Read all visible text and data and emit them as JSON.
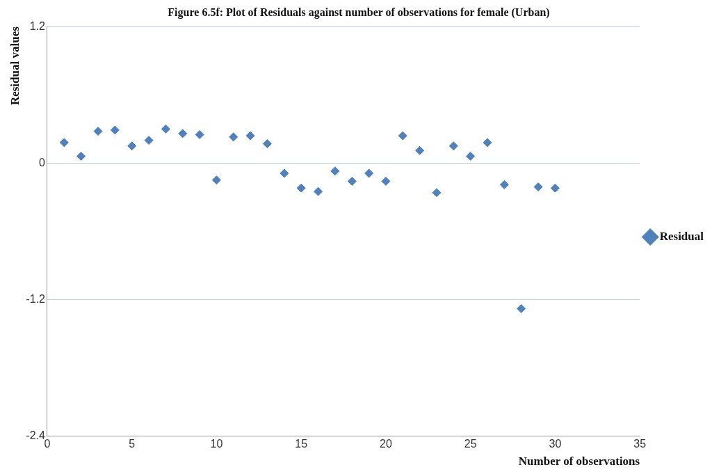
{
  "chart_data": {
    "type": "scatter",
    "title": "Figure 6.5f: Plot of Residuals against number of observations for female (Urban)",
    "xlabel": "Number of observations",
    "ylabel": "Residual values",
    "x": [
      1,
      2,
      3,
      4,
      5,
      6,
      7,
      8,
      9,
      10,
      11,
      12,
      13,
      14,
      15,
      16,
      17,
      18,
      19,
      20,
      21,
      22,
      23,
      24,
      25,
      26,
      27,
      28,
      29,
      30
    ],
    "series": [
      {
        "name": "Residual",
        "color": "#4f81bd",
        "values": [
          0.18,
          0.06,
          0.28,
          0.29,
          0.15,
          0.2,
          0.3,
          0.26,
          0.25,
          -0.15,
          0.23,
          0.24,
          0.17,
          -0.09,
          -0.22,
          -0.25,
          -0.07,
          -0.16,
          -0.09,
          -0.16,
          0.24,
          0.11,
          -0.26,
          0.15,
          0.06,
          0.18,
          -0.19,
          -1.28,
          -0.21,
          -0.22
        ]
      }
    ],
    "xlim": [
      0,
      35
    ],
    "xticks": [
      0,
      5,
      10,
      15,
      20,
      25,
      30,
      35
    ],
    "ylim": [
      -2.4,
      1.2
    ],
    "yticks": [
      -2.4,
      -1.2,
      {
        "value": 0,
        "label": "0"
      },
      1.2
    ],
    "grid": "y",
    "legend": "right",
    "marker": "diamond"
  }
}
